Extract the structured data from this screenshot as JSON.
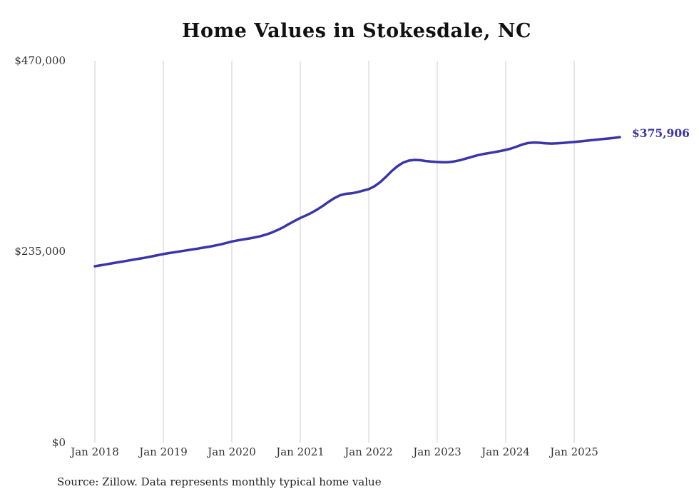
{
  "colors": {
    "line": "#3a35a8",
    "gridline": "#cccccc",
    "label_text": "#333333",
    "title_text": "#111111"
  },
  "source_note": "Source: Zillow. Data represents monthly typical home value",
  "chart_data": {
    "type": "line",
    "title": "Home Values in Stokesdale, NC",
    "series_name": "Typical home value",
    "x_start": "2018-01",
    "x_interval": "monthly",
    "x_end": "2025-09",
    "values": [
      217000,
      218200,
      219400,
      220600,
      221800,
      223000,
      224200,
      225400,
      226600,
      227800,
      229200,
      230600,
      232000,
      233200,
      234300,
      235400,
      236500,
      237600,
      238700,
      239900,
      241100,
      242400,
      243900,
      245600,
      247500,
      248800,
      250000,
      251200,
      252500,
      254000,
      256000,
      258500,
      261500,
      265000,
      269000,
      272800,
      276500,
      279500,
      283000,
      287000,
      291500,
      296500,
      301000,
      304500,
      306200,
      306800,
      308200,
      310000,
      312000,
      315500,
      320500,
      327000,
      334000,
      340000,
      344500,
      347000,
      347900,
      347500,
      346500,
      345800,
      345300,
      345000,
      345200,
      346000,
      347500,
      349500,
      351500,
      353500,
      355000,
      356200,
      357400,
      358800,
      360200,
      362000,
      364500,
      367000,
      368800,
      369300,
      369000,
      368300,
      368000,
      368300,
      368800,
      369400,
      369900,
      370600,
      371400,
      372100,
      372800,
      373500,
      374200,
      375000,
      375906
    ],
    "last_value": 375906,
    "end_label": "$375,906",
    "ylim": [
      0,
      470000
    ],
    "y_tick_labels": [
      "$470,000",
      "$235,000",
      "$0"
    ],
    "y_tick_values": [
      470000,
      235000,
      0
    ],
    "x_tick_labels": [
      "Jan 2018",
      "Jan 2019",
      "Jan 2020",
      "Jan 2021",
      "Jan 2022",
      "Jan 2023",
      "Jan 2024",
      "Jan 2025"
    ],
    "grid": "vertical-only",
    "legend": "none"
  }
}
